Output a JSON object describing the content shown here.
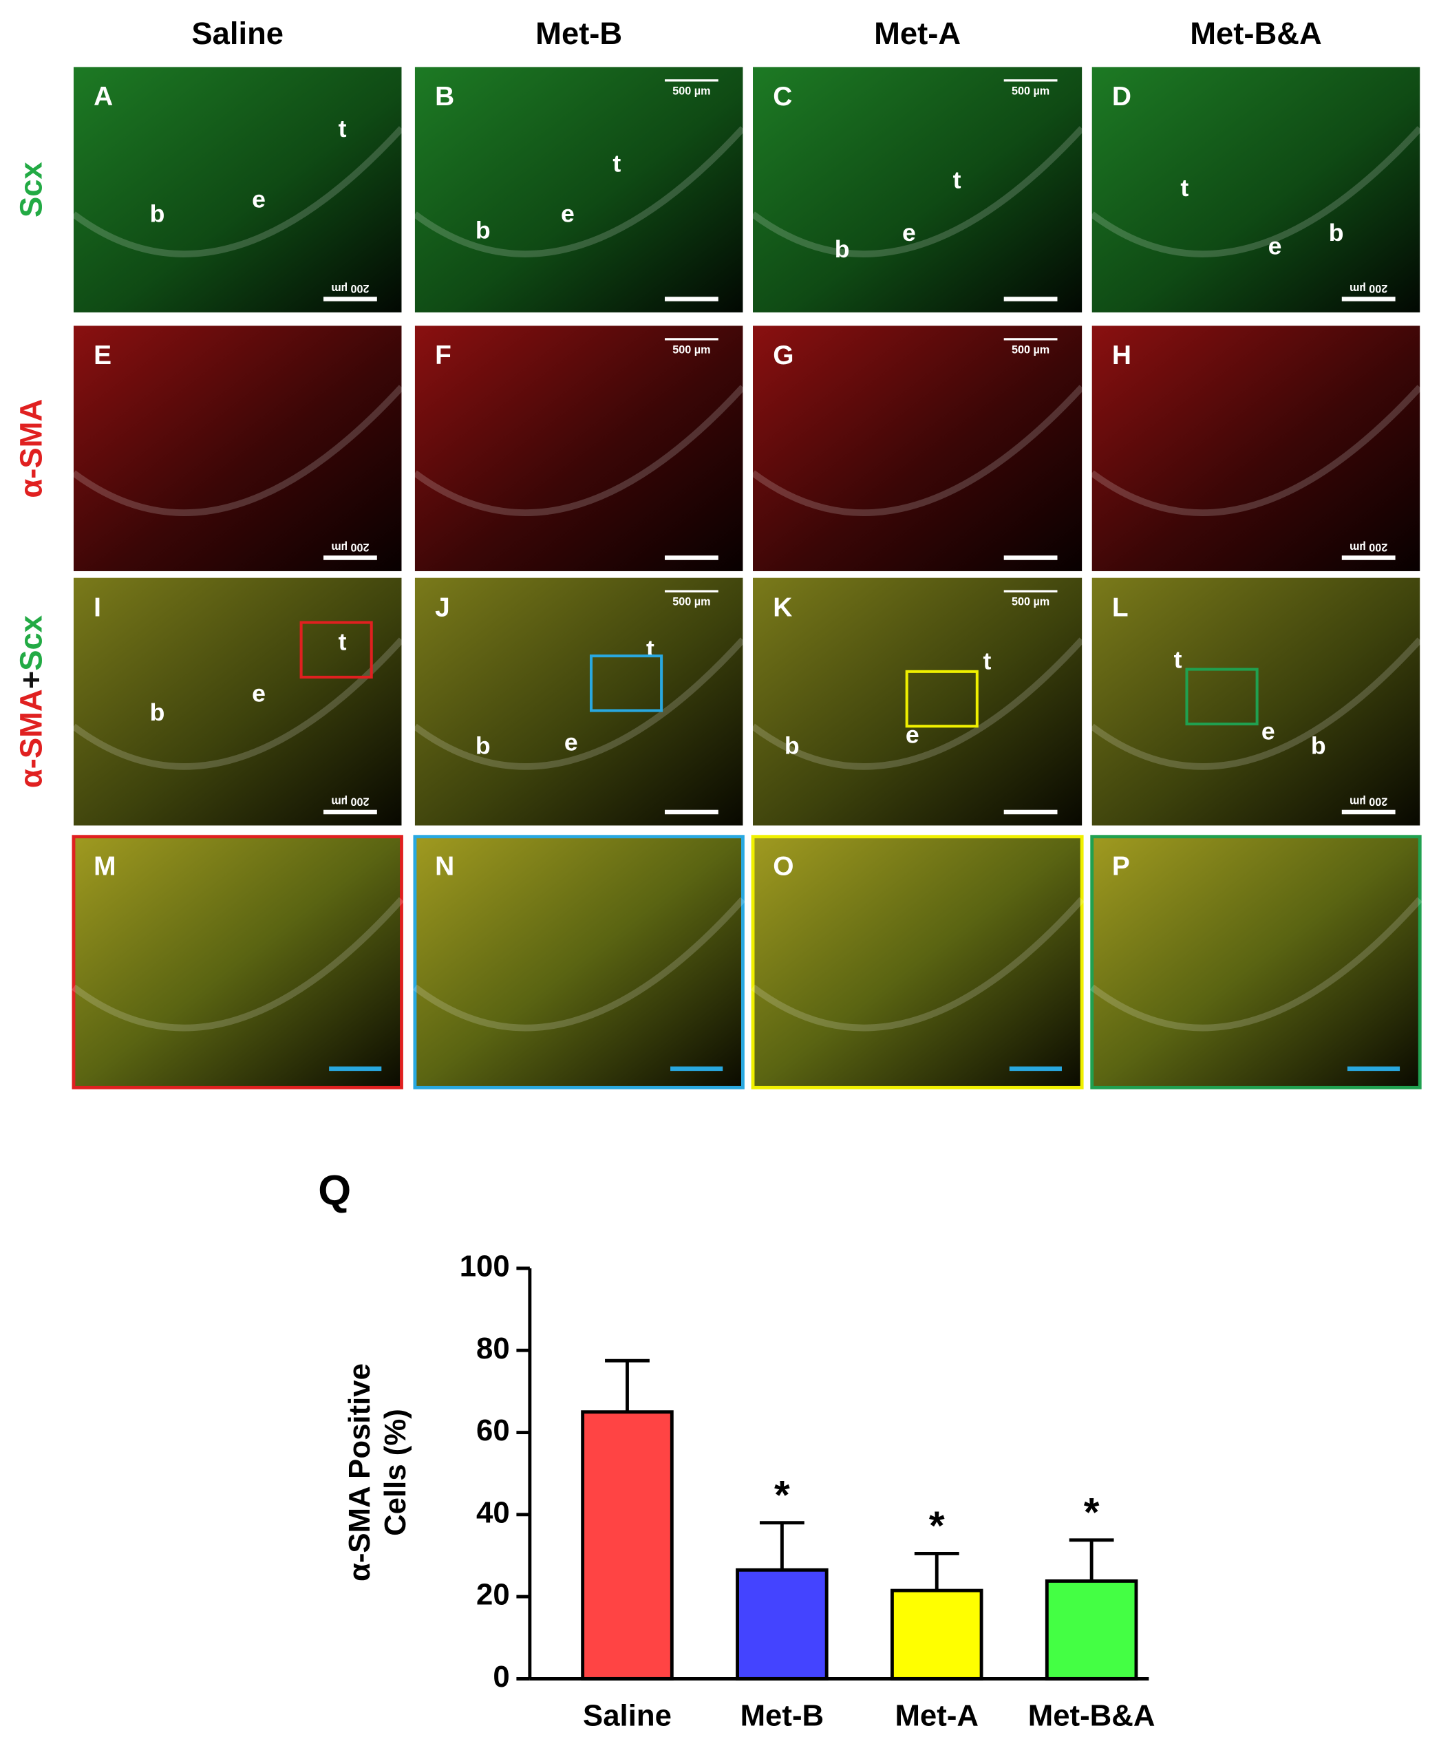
{
  "columns": [
    "Saline",
    "Met-B",
    "Met-A",
    "Met-B&A"
  ],
  "rows": [
    [
      "Scx"
    ],
    [
      "α-SMA"
    ],
    [
      "α-SMA",
      "+",
      "Scx"
    ]
  ],
  "panels": [
    {
      "letter": "A",
      "tissue": [
        "b",
        "e",
        "t"
      ],
      "scale": "200 µm"
    },
    {
      "letter": "B",
      "tissue": [
        "b",
        "e",
        "t"
      ],
      "scale": "500 µm"
    },
    {
      "letter": "C",
      "tissue": [
        "b",
        "e",
        "t"
      ],
      "scale": "500 µm"
    },
    {
      "letter": "D",
      "tissue": [
        "b",
        "e",
        "t"
      ],
      "scale": "200 µm"
    },
    {
      "letter": "E",
      "scale": "200 µm"
    },
    {
      "letter": "F",
      "scale": "500 µm"
    },
    {
      "letter": "G",
      "scale": "500 µm"
    },
    {
      "letter": "H",
      "scale": "200 µm"
    },
    {
      "letter": "I",
      "tissue": [
        "b",
        "e",
        "t"
      ],
      "scale": "200 µm"
    },
    {
      "letter": "J",
      "tissue": [
        "b",
        "e",
        "t"
      ],
      "scale": "500 µm"
    },
    {
      "letter": "K",
      "tissue": [
        "b",
        "e",
        "t"
      ],
      "scale": "500 µm"
    },
    {
      "letter": "L",
      "tissue": [
        "b",
        "e",
        "t"
      ],
      "scale": "200 µm"
    },
    {
      "letter": "M"
    },
    {
      "letter": "N"
    },
    {
      "letter": "O"
    },
    {
      "letter": "P"
    }
  ],
  "chart_data": {
    "type": "bar",
    "title": "Q",
    "ylabel": [
      "α-SMA Positive",
      "Cells (%)"
    ],
    "categories": [
      "Saline",
      "Met-B",
      "Met-A",
      "Met-B&A"
    ],
    "values": [
      65,
      26.5,
      21.5,
      23.8
    ],
    "errors": [
      12.5,
      11.5,
      9,
      10
    ],
    "annotations": [
      null,
      "*",
      "*",
      "*"
    ],
    "colors": [
      "#ff4444",
      "#4444ff",
      "#ffff00",
      "#44ff44"
    ],
    "ylim": [
      0,
      100
    ],
    "yticks": [
      0,
      20,
      40,
      60,
      80,
      100
    ]
  }
}
